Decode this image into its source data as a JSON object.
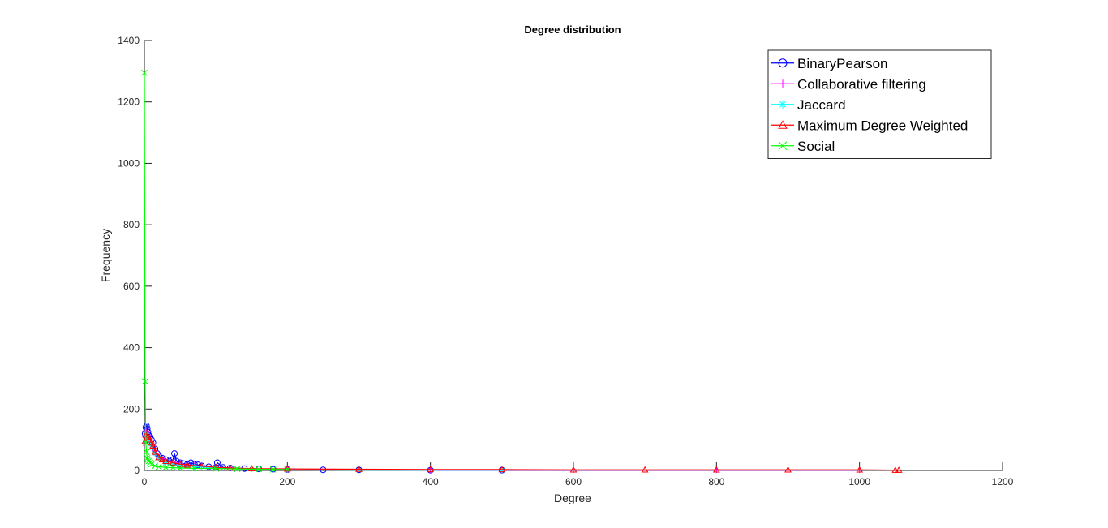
{
  "chart_data": {
    "type": "line",
    "title": "Degree distribution",
    "xlabel": "Degree",
    "ylabel": "Frequency",
    "xlim": [
      0,
      1200
    ],
    "ylim": [
      0,
      1400
    ],
    "xticks": [
      0,
      200,
      400,
      600,
      800,
      1000,
      1200
    ],
    "yticks": [
      0,
      200,
      400,
      600,
      800,
      1000,
      1200,
      1400
    ],
    "legend_position": "top-right",
    "series": [
      {
        "name": "BinaryPearson",
        "color": "#0000ff",
        "marker": "circle",
        "points": [
          [
            1,
            120
          ],
          [
            2,
            140
          ],
          [
            3,
            145
          ],
          [
            4,
            135
          ],
          [
            5,
            125
          ],
          [
            6,
            115
          ],
          [
            8,
            110
          ],
          [
            10,
            100
          ],
          [
            12,
            90
          ],
          [
            15,
            70
          ],
          [
            18,
            55
          ],
          [
            20,
            48
          ],
          [
            25,
            40
          ],
          [
            30,
            35
          ],
          [
            35,
            30
          ],
          [
            40,
            35
          ],
          [
            42,
            55
          ],
          [
            45,
            30
          ],
          [
            50,
            25
          ],
          [
            55,
            22
          ],
          [
            60,
            20
          ],
          [
            65,
            25
          ],
          [
            70,
            20
          ],
          [
            75,
            18
          ],
          [
            80,
            15
          ],
          [
            90,
            12
          ],
          [
            100,
            10
          ],
          [
            102,
            25
          ],
          [
            110,
            10
          ],
          [
            120,
            8
          ],
          [
            140,
            6
          ],
          [
            160,
            5
          ],
          [
            180,
            4
          ],
          [
            200,
            3
          ],
          [
            250,
            2
          ],
          [
            300,
            2
          ],
          [
            400,
            1
          ],
          [
            500,
            1
          ]
        ]
      },
      {
        "name": "Collaborative filtering",
        "color": "#ff00ff",
        "marker": "plus",
        "points": [
          [
            1,
            110
          ],
          [
            2,
            130
          ],
          [
            3,
            125
          ],
          [
            5,
            115
          ],
          [
            8,
            100
          ],
          [
            10,
            90
          ],
          [
            15,
            65
          ],
          [
            20,
            45
          ],
          [
            25,
            38
          ],
          [
            30,
            30
          ],
          [
            40,
            28
          ],
          [
            50,
            22
          ],
          [
            60,
            18
          ],
          [
            70,
            16
          ],
          [
            80,
            14
          ],
          [
            100,
            10
          ],
          [
            120,
            8
          ],
          [
            150,
            5
          ],
          [
            200,
            3
          ],
          [
            300,
            2
          ],
          [
            400,
            1
          ],
          [
            600,
            1
          ],
          [
            800,
            1
          ],
          [
            1000,
            1
          ]
        ]
      },
      {
        "name": "Jaccard",
        "color": "#00ffff",
        "marker": "asterisk",
        "points": [
          [
            1,
            100
          ],
          [
            2,
            120
          ],
          [
            3,
            115
          ],
          [
            5,
            105
          ],
          [
            8,
            90
          ],
          [
            10,
            80
          ],
          [
            15,
            55
          ],
          [
            20,
            40
          ],
          [
            30,
            25
          ],
          [
            40,
            20
          ],
          [
            50,
            15
          ],
          [
            70,
            12
          ],
          [
            100,
            8
          ],
          [
            150,
            4
          ],
          [
            200,
            2
          ],
          [
            300,
            1
          ],
          [
            500,
            1
          ]
        ]
      },
      {
        "name": "Maximum Degree Weighted",
        "color": "#ff0000",
        "marker": "triangle",
        "points": [
          [
            1,
            95
          ],
          [
            2,
            115
          ],
          [
            3,
            120
          ],
          [
            5,
            110
          ],
          [
            8,
            100
          ],
          [
            10,
            90
          ],
          [
            12,
            80
          ],
          [
            15,
            60
          ],
          [
            20,
            42
          ],
          [
            25,
            35
          ],
          [
            30,
            30
          ],
          [
            40,
            25
          ],
          [
            50,
            20
          ],
          [
            60,
            18
          ],
          [
            80,
            14
          ],
          [
            100,
            10
          ],
          [
            120,
            8
          ],
          [
            150,
            6
          ],
          [
            200,
            5
          ],
          [
            300,
            4
          ],
          [
            400,
            3
          ],
          [
            500,
            3
          ],
          [
            600,
            2
          ],
          [
            700,
            2
          ],
          [
            800,
            2
          ],
          [
            900,
            2
          ],
          [
            1000,
            2
          ],
          [
            1050,
            1
          ],
          [
            1055,
            1
          ]
        ]
      },
      {
        "name": "Social",
        "color": "#00ff00",
        "marker": "x",
        "points": [
          [
            0,
            1295
          ],
          [
            1,
            290
          ],
          [
            2,
            90
          ],
          [
            3,
            60
          ],
          [
            4,
            40
          ],
          [
            5,
            35
          ],
          [
            6,
            30
          ],
          [
            8,
            25
          ],
          [
            10,
            20
          ],
          [
            15,
            15
          ],
          [
            20,
            12
          ],
          [
            30,
            10
          ],
          [
            40,
            9
          ],
          [
            50,
            8
          ],
          [
            70,
            7
          ],
          [
            100,
            6
          ],
          [
            130,
            5
          ],
          [
            160,
            4
          ],
          [
            180,
            3
          ],
          [
            200,
            3
          ]
        ]
      }
    ]
  }
}
